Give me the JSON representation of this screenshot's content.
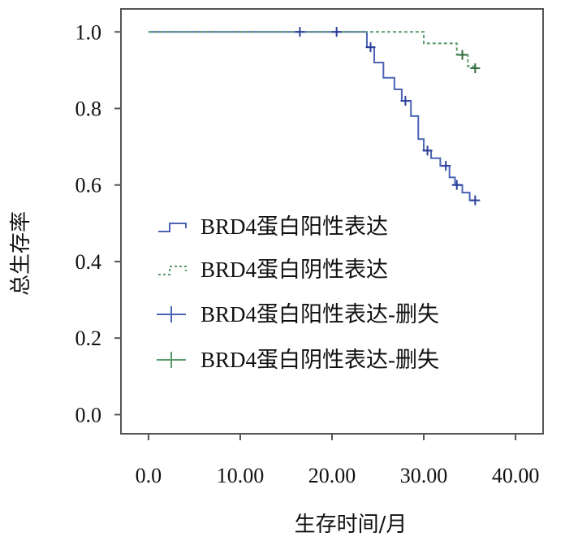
{
  "chart_data": {
    "type": "line",
    "subtype": "kaplan-meier",
    "xlabel": "生存时间/月",
    "ylabel": "总生存率",
    "xlim": [
      -3,
      43
    ],
    "ylim": [
      -0.05,
      1.06
    ],
    "x_ticks": [
      0,
      10,
      20,
      30,
      40
    ],
    "x_tick_labels": [
      "0.0",
      "10.00",
      "20.00",
      "30.00",
      "40.00"
    ],
    "y_ticks": [
      0.0,
      0.2,
      0.4,
      0.6,
      0.8,
      1.0
    ],
    "y_tick_labels": [
      "0.0",
      "0.2",
      "0.4",
      "0.6",
      "0.8",
      "1.0"
    ],
    "grid": false,
    "legend_position": "left-center",
    "legend": [
      "BRD4蛋白阳性表达",
      "BRD4蛋白阴性表达",
      "BRD4蛋白阳性表达-删失",
      "BRD4蛋白阴性表达-删失"
    ],
    "series": [
      {
        "name": "BRD4蛋白阳性表达",
        "color": "#4b64b4",
        "style": "solid",
        "steps": [
          [
            0,
            1.0
          ],
          [
            23.8,
            0.96
          ],
          [
            24.6,
            0.92
          ],
          [
            25.6,
            0.88
          ],
          [
            26.8,
            0.85
          ],
          [
            27.6,
            0.82
          ],
          [
            28.6,
            0.78
          ],
          [
            29.4,
            0.72
          ],
          [
            30.0,
            0.69
          ],
          [
            30.8,
            0.67
          ],
          [
            31.8,
            0.65
          ],
          [
            32.8,
            0.62
          ],
          [
            33.4,
            0.6
          ],
          [
            34.2,
            0.58
          ],
          [
            35.0,
            0.56
          ],
          [
            35.6,
            0.56
          ]
        ],
        "censored": [
          [
            16.5,
            1.0
          ],
          [
            20.5,
            1.0
          ],
          [
            24.2,
            0.96
          ],
          [
            28.0,
            0.82
          ],
          [
            30.4,
            0.69
          ],
          [
            32.4,
            0.65
          ],
          [
            33.6,
            0.6
          ],
          [
            35.6,
            0.56
          ]
        ]
      },
      {
        "name": "BRD4蛋白阴性表达",
        "color": "#5a9a6a",
        "style": "dashed",
        "steps": [
          [
            0,
            1.0
          ],
          [
            30.0,
            0.97
          ],
          [
            33.6,
            0.94
          ],
          [
            34.8,
            0.91
          ],
          [
            35.6,
            0.91
          ]
        ],
        "censored": [
          [
            34.2,
            0.94
          ],
          [
            35.6,
            0.905
          ]
        ]
      }
    ]
  }
}
